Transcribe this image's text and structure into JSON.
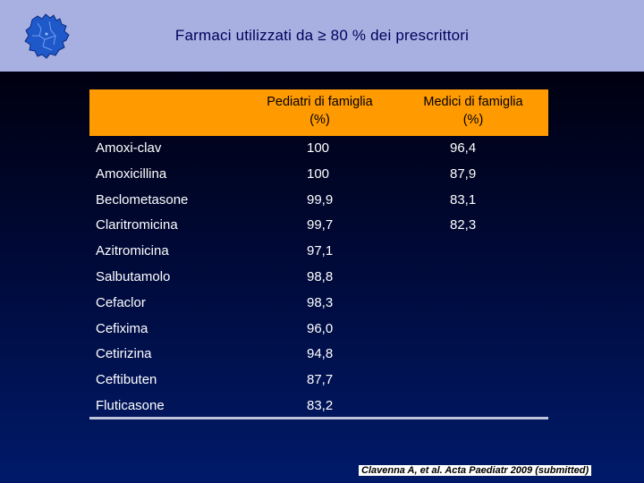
{
  "slide": {
    "title": "Farmaci utilizzati da ≥ 80 % dei prescrittori",
    "logo_icon": "lombardia-region-map-icon",
    "header_color": "#a8b0e2",
    "accent_color": "#ff9a00"
  },
  "table": {
    "columns": [
      {
        "line1": "Pediatri di famiglia",
        "line2": "(%)"
      },
      {
        "line1": "Medici di famiglia",
        "line2": "(%)"
      }
    ],
    "rows": [
      {
        "name": "Amoxi-clav",
        "ped": "100",
        "med": "96,4"
      },
      {
        "name": "Amoxicillina",
        "ped": "100",
        "med": "87,9"
      },
      {
        "name": "Beclometasone",
        "ped": "99,9",
        "med": "83,1"
      },
      {
        "name": "Claritromicina",
        "ped": "99,7",
        "med": "82,3"
      },
      {
        "name": "Azitromicina",
        "ped": "97,1",
        "med": ""
      },
      {
        "name": "Salbutamolo",
        "ped": "98,8",
        "med": ""
      },
      {
        "name": "Cefaclor",
        "ped": "98,3",
        "med": ""
      },
      {
        "name": "Cefixima",
        "ped": "96,0",
        "med": ""
      },
      {
        "name": "Cetirizina",
        "ped": "94,8",
        "med": ""
      },
      {
        "name": "Ceftibuten",
        "ped": "87,7",
        "med": ""
      },
      {
        "name": "Fluticasone",
        "ped": "83,2",
        "med": ""
      }
    ]
  },
  "citation": "Clavenna A, et al. Acta Paediatr 2009 (submitted)"
}
